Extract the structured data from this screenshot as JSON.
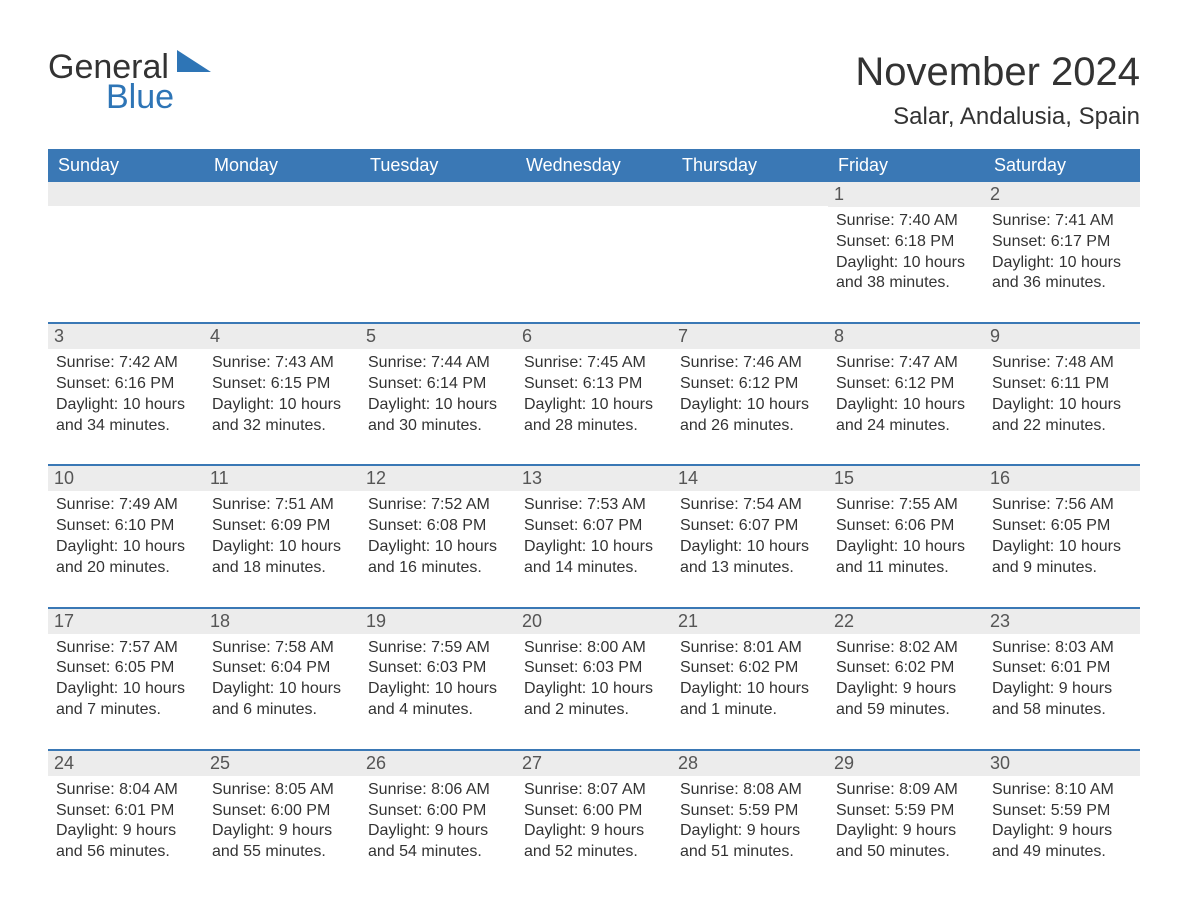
{
  "brand": {
    "name_part1": "General",
    "name_part2": "Blue",
    "text_color": "#333333",
    "accent_color": "#2e75b6"
  },
  "title": "November 2024",
  "location": "Salar, Andalusia, Spain",
  "colors": {
    "header_bg": "#3a78b5",
    "header_text": "#ffffff",
    "strip_bg": "#ececec",
    "strip_border": "#3a78b5",
    "body_text": "#333333",
    "daynum_color": "#555555",
    "background": "#ffffff"
  },
  "typography": {
    "title_fontsize": 40,
    "location_fontsize": 24,
    "header_fontsize": 18,
    "daynum_fontsize": 18,
    "info_fontsize": 16,
    "logo_fontsize": 34
  },
  "daysOfWeek": [
    "Sunday",
    "Monday",
    "Tuesday",
    "Wednesday",
    "Thursday",
    "Friday",
    "Saturday"
  ],
  "weeks": [
    [
      null,
      null,
      null,
      null,
      null,
      {
        "n": "1",
        "sunrise": "7:40 AM",
        "sunset": "6:18 PM",
        "daylight": "10 hours and 38 minutes."
      },
      {
        "n": "2",
        "sunrise": "7:41 AM",
        "sunset": "6:17 PM",
        "daylight": "10 hours and 36 minutes."
      }
    ],
    [
      {
        "n": "3",
        "sunrise": "7:42 AM",
        "sunset": "6:16 PM",
        "daylight": "10 hours and 34 minutes."
      },
      {
        "n": "4",
        "sunrise": "7:43 AM",
        "sunset": "6:15 PM",
        "daylight": "10 hours and 32 minutes."
      },
      {
        "n": "5",
        "sunrise": "7:44 AM",
        "sunset": "6:14 PM",
        "daylight": "10 hours and 30 minutes."
      },
      {
        "n": "6",
        "sunrise": "7:45 AM",
        "sunset": "6:13 PM",
        "daylight": "10 hours and 28 minutes."
      },
      {
        "n": "7",
        "sunrise": "7:46 AM",
        "sunset": "6:12 PM",
        "daylight": "10 hours and 26 minutes."
      },
      {
        "n": "8",
        "sunrise": "7:47 AM",
        "sunset": "6:12 PM",
        "daylight": "10 hours and 24 minutes."
      },
      {
        "n": "9",
        "sunrise": "7:48 AM",
        "sunset": "6:11 PM",
        "daylight": "10 hours and 22 minutes."
      }
    ],
    [
      {
        "n": "10",
        "sunrise": "7:49 AM",
        "sunset": "6:10 PM",
        "daylight": "10 hours and 20 minutes."
      },
      {
        "n": "11",
        "sunrise": "7:51 AM",
        "sunset": "6:09 PM",
        "daylight": "10 hours and 18 minutes."
      },
      {
        "n": "12",
        "sunrise": "7:52 AM",
        "sunset": "6:08 PM",
        "daylight": "10 hours and 16 minutes."
      },
      {
        "n": "13",
        "sunrise": "7:53 AM",
        "sunset": "6:07 PM",
        "daylight": "10 hours and 14 minutes."
      },
      {
        "n": "14",
        "sunrise": "7:54 AM",
        "sunset": "6:07 PM",
        "daylight": "10 hours and 13 minutes."
      },
      {
        "n": "15",
        "sunrise": "7:55 AM",
        "sunset": "6:06 PM",
        "daylight": "10 hours and 11 minutes."
      },
      {
        "n": "16",
        "sunrise": "7:56 AM",
        "sunset": "6:05 PM",
        "daylight": "10 hours and 9 minutes."
      }
    ],
    [
      {
        "n": "17",
        "sunrise": "7:57 AM",
        "sunset": "6:05 PM",
        "daylight": "10 hours and 7 minutes."
      },
      {
        "n": "18",
        "sunrise": "7:58 AM",
        "sunset": "6:04 PM",
        "daylight": "10 hours and 6 minutes."
      },
      {
        "n": "19",
        "sunrise": "7:59 AM",
        "sunset": "6:03 PM",
        "daylight": "10 hours and 4 minutes."
      },
      {
        "n": "20",
        "sunrise": "8:00 AM",
        "sunset": "6:03 PM",
        "daylight": "10 hours and 2 minutes."
      },
      {
        "n": "21",
        "sunrise": "8:01 AM",
        "sunset": "6:02 PM",
        "daylight": "10 hours and 1 minute."
      },
      {
        "n": "22",
        "sunrise": "8:02 AM",
        "sunset": "6:02 PM",
        "daylight": "9 hours and 59 minutes."
      },
      {
        "n": "23",
        "sunrise": "8:03 AM",
        "sunset": "6:01 PM",
        "daylight": "9 hours and 58 minutes."
      }
    ],
    [
      {
        "n": "24",
        "sunrise": "8:04 AM",
        "sunset": "6:01 PM",
        "daylight": "9 hours and 56 minutes."
      },
      {
        "n": "25",
        "sunrise": "8:05 AM",
        "sunset": "6:00 PM",
        "daylight": "9 hours and 55 minutes."
      },
      {
        "n": "26",
        "sunrise": "8:06 AM",
        "sunset": "6:00 PM",
        "daylight": "9 hours and 54 minutes."
      },
      {
        "n": "27",
        "sunrise": "8:07 AM",
        "sunset": "6:00 PM",
        "daylight": "9 hours and 52 minutes."
      },
      {
        "n": "28",
        "sunrise": "8:08 AM",
        "sunset": "5:59 PM",
        "daylight": "9 hours and 51 minutes."
      },
      {
        "n": "29",
        "sunrise": "8:09 AM",
        "sunset": "5:59 PM",
        "daylight": "9 hours and 50 minutes."
      },
      {
        "n": "30",
        "sunrise": "8:10 AM",
        "sunset": "5:59 PM",
        "daylight": "9 hours and 49 minutes."
      }
    ]
  ],
  "labels": {
    "sunrise": "Sunrise: ",
    "sunset": "Sunset: ",
    "daylight": "Daylight: "
  }
}
